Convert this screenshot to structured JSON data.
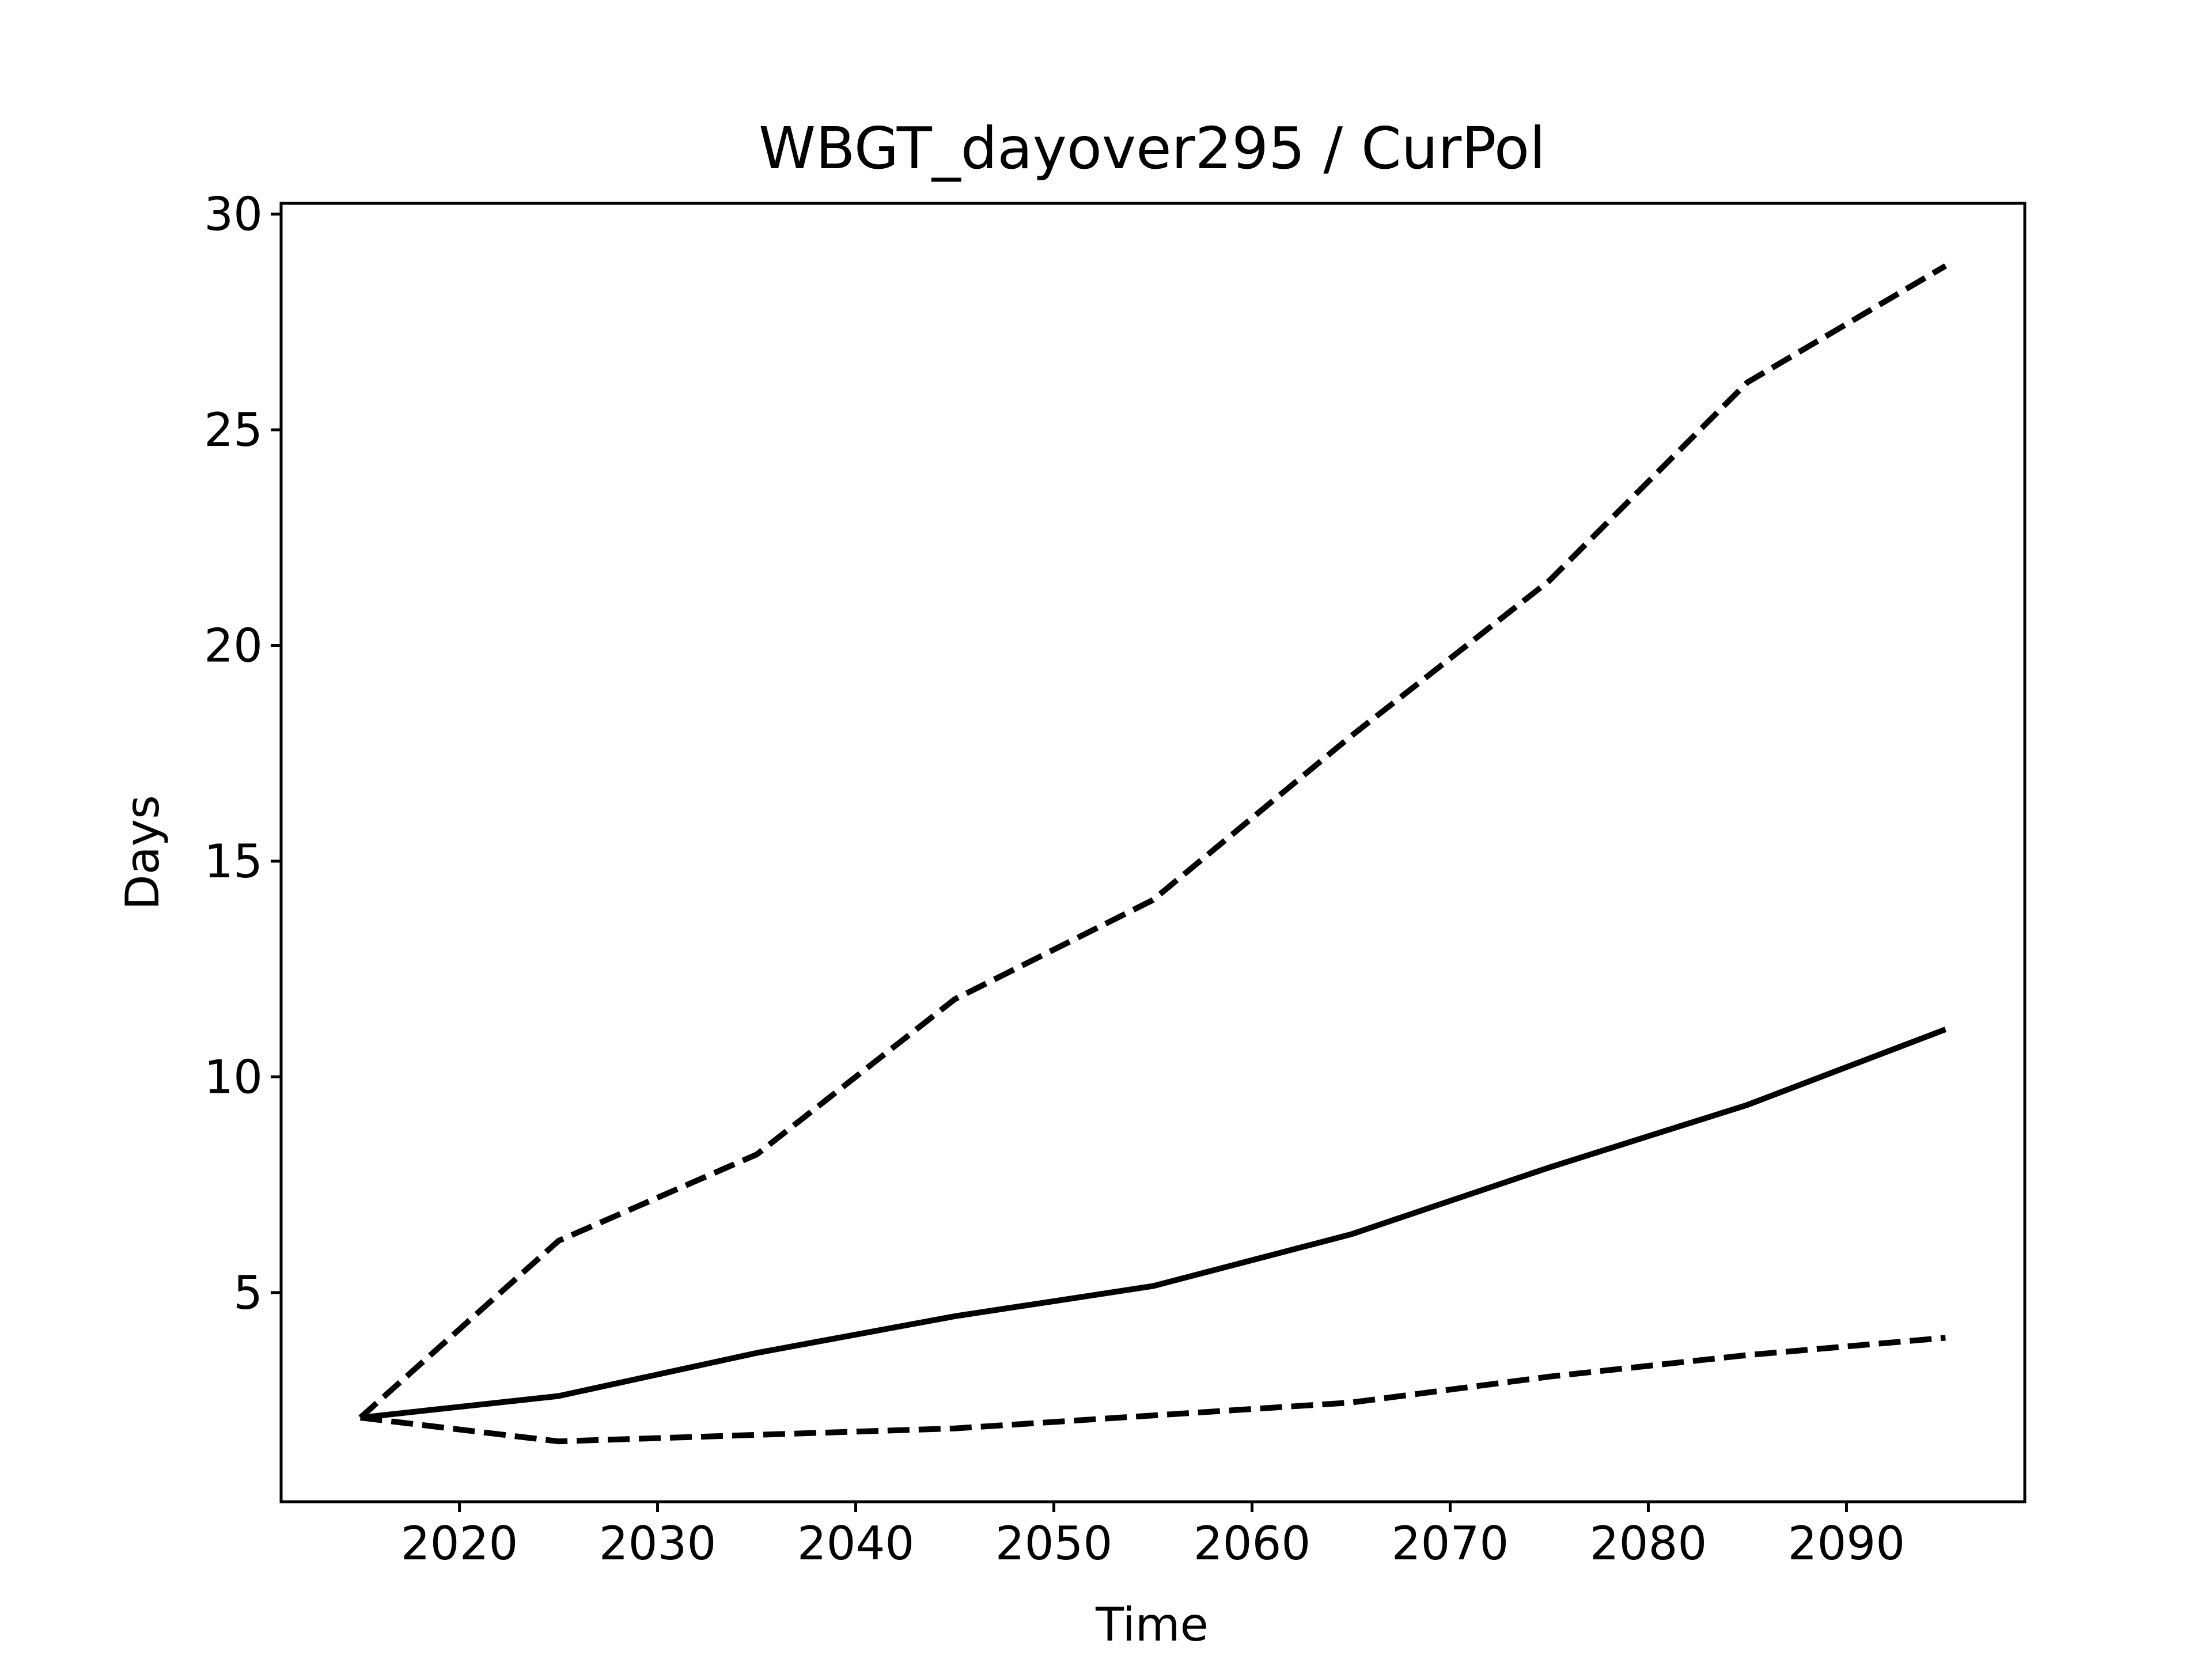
{
  "chart_data": {
    "type": "line",
    "title": "WBGT_dayover295 / CurPol",
    "xlabel": "Time",
    "ylabel": "Days",
    "xlim": [
      2011,
      2099
    ],
    "ylim": [
      0.15,
      30.25
    ],
    "x_ticks": [
      2020,
      2030,
      2040,
      2050,
      2060,
      2070,
      2080,
      2090
    ],
    "y_ticks": [
      5,
      10,
      15,
      20,
      25,
      30
    ],
    "x_tick_labels": [
      "2020",
      "2030",
      "2040",
      "2050",
      "2060",
      "2070",
      "2080",
      "2090"
    ],
    "y_tick_labels": [
      "5",
      "10",
      "15",
      "20",
      "25",
      "30"
    ],
    "x": [
      2015,
      2025,
      2035,
      2045,
      2055,
      2065,
      2075,
      2085,
      2095
    ],
    "series": [
      {
        "style": "dashed",
        "values": [
          2.1,
          6.2,
          8.2,
          11.8,
          14.1,
          17.9,
          21.5,
          26.1,
          28.8
        ]
      },
      {
        "style": "solid",
        "values": [
          2.1,
          2.6,
          3.6,
          4.45,
          5.15,
          6.35,
          7.9,
          9.35,
          11.1
        ]
      },
      {
        "style": "dashed",
        "values": [
          2.1,
          1.55,
          1.7,
          1.85,
          2.15,
          2.45,
          3.05,
          3.55,
          3.95
        ]
      }
    ],
    "grid": false,
    "colors": {
      "line": "#000000"
    }
  }
}
